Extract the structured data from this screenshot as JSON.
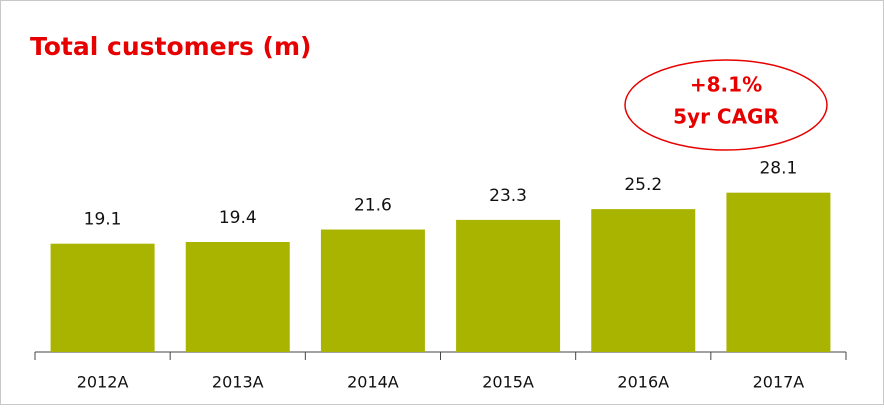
{
  "chart_data": {
    "type": "bar",
    "title": "Total customers (m)",
    "categories": [
      "2012A",
      "2013A",
      "2014A",
      "2015A",
      "2016A",
      "2017A"
    ],
    "values": [
      19.1,
      19.4,
      21.6,
      23.3,
      25.2,
      28.1
    ],
    "color": "#a8b400",
    "annotations": [
      "+8.1%",
      "5yr CAGR"
    ]
  }
}
